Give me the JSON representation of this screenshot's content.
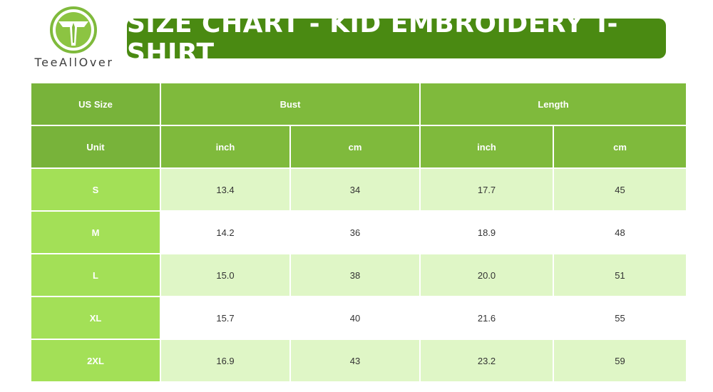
{
  "brand": {
    "logo_text": "TeeAllOver",
    "brand_color": "#4a8a12",
    "accent_color": "#7fba3c"
  },
  "title": "SIZE CHART - KID EMBROIDERY T-SHIRT",
  "table": {
    "header_row1": {
      "size_label": "US Size",
      "bust_label": "Bust",
      "length_label": "Length"
    },
    "header_row2": {
      "unit_label": "Unit",
      "bust_inch": "inch",
      "bust_cm": "cm",
      "length_inch": "inch",
      "length_cm": "cm"
    },
    "rows": [
      {
        "size": "S",
        "bust_inch": "13.4",
        "bust_cm": "34",
        "length_inch": "17.7",
        "length_cm": "45"
      },
      {
        "size": "M",
        "bust_inch": "14.2",
        "bust_cm": "36",
        "length_inch": "18.9",
        "length_cm": "48"
      },
      {
        "size": "L",
        "bust_inch": "15.0",
        "bust_cm": "38",
        "length_inch": "20.0",
        "length_cm": "51"
      },
      {
        "size": "XL",
        "bust_inch": "15.7",
        "bust_cm": "40",
        "length_inch": "21.6",
        "length_cm": "55"
      },
      {
        "size": "2XL",
        "bust_inch": "16.9",
        "bust_cm": "43",
        "length_inch": "23.2",
        "length_cm": "59"
      }
    ]
  }
}
